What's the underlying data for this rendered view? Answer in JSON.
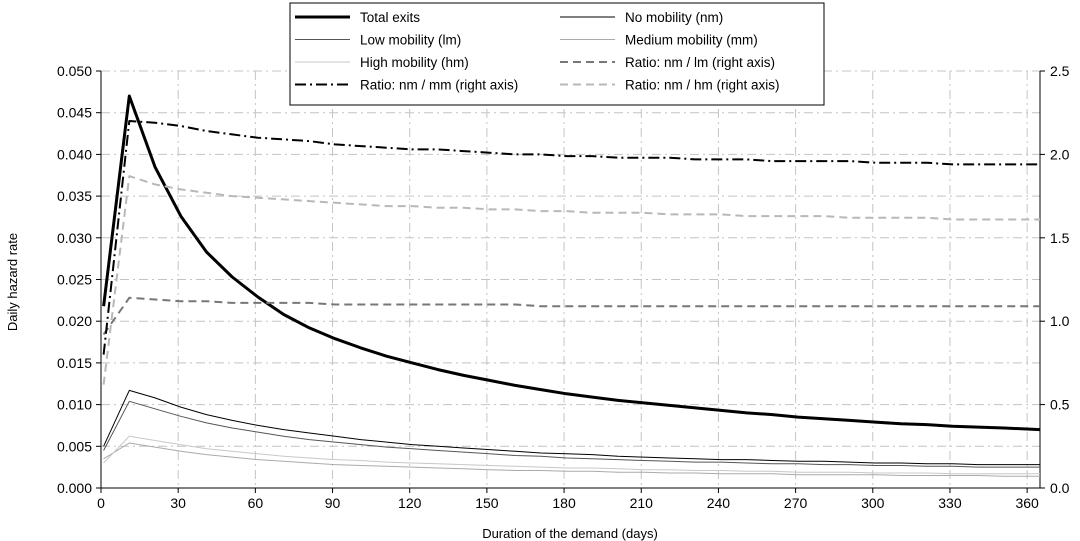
{
  "chart_data": {
    "type": "line",
    "title": "",
    "xlabel": "Duration of the demand (days)",
    "ylabel": "Daily hazard rate",
    "y2label": "",
    "xlim": [
      0,
      365
    ],
    "ylim": [
      0,
      0.05
    ],
    "y2lim": [
      0,
      2.5
    ],
    "x_ticks": [
      0,
      30,
      60,
      90,
      120,
      150,
      180,
      210,
      240,
      270,
      300,
      330,
      360
    ],
    "y_ticks": [
      "0.000",
      "0.005",
      "0.010",
      "0.015",
      "0.020",
      "0.025",
      "0.030",
      "0.035",
      "0.040",
      "0.045",
      "0.050"
    ],
    "y2_ticks": [
      "0.0",
      "0.5",
      "1.0",
      "1.5",
      "2.0",
      "2.5"
    ],
    "grid": true,
    "legend_position": "top-center",
    "x": [
      1,
      11,
      21,
      31,
      41,
      51,
      61,
      71,
      81,
      91,
      101,
      111,
      121,
      131,
      141,
      151,
      161,
      171,
      181,
      191,
      201,
      211,
      221,
      231,
      241,
      251,
      261,
      271,
      281,
      291,
      301,
      311,
      321,
      331,
      341,
      351,
      365
    ],
    "series": [
      {
        "name": "Total exits",
        "axis": "left",
        "color": "#000000",
        "width": 3,
        "dash": "",
        "values": [
          0.0218,
          0.047,
          0.0385,
          0.0326,
          0.0283,
          0.0253,
          0.0229,
          0.0208,
          0.0192,
          0.0179,
          0.0168,
          0.0158,
          0.015,
          0.0142,
          0.0135,
          0.0129,
          0.0123,
          0.0118,
          0.0113,
          0.0109,
          0.0105,
          0.0102,
          0.0099,
          0.0096,
          0.0093,
          0.009,
          0.0088,
          0.0085,
          0.0083,
          0.0081,
          0.0079,
          0.0077,
          0.0076,
          0.0074,
          0.0073,
          0.0072,
          0.007
        ]
      },
      {
        "name": "No mobility (nm)",
        "axis": "left",
        "color": "#000000",
        "width": 1,
        "dash": "",
        "values": [
          0.005,
          0.0117,
          0.0108,
          0.0097,
          0.0088,
          0.0081,
          0.0075,
          0.007,
          0.0066,
          0.0062,
          0.0058,
          0.0055,
          0.0052,
          0.005,
          0.0048,
          0.0046,
          0.0044,
          0.0042,
          0.0041,
          0.004,
          0.0038,
          0.0037,
          0.0036,
          0.0035,
          0.0034,
          0.0034,
          0.0033,
          0.0032,
          0.0032,
          0.0031,
          0.003,
          0.003,
          0.0029,
          0.0029,
          0.0028,
          0.0028,
          0.0028
        ]
      },
      {
        "name": "Low mobility (lm)",
        "axis": "left",
        "color": "#555555",
        "width": 1,
        "dash": "",
        "values": [
          0.0045,
          0.0104,
          0.0095,
          0.0086,
          0.0078,
          0.0072,
          0.0067,
          0.0062,
          0.0058,
          0.0055,
          0.0052,
          0.0049,
          0.0047,
          0.0045,
          0.0043,
          0.0041,
          0.0039,
          0.0038,
          0.0036,
          0.0035,
          0.0034,
          0.0033,
          0.0032,
          0.0031,
          0.0031,
          0.003,
          0.0029,
          0.0029,
          0.0028,
          0.0028,
          0.0027,
          0.0027,
          0.0026,
          0.0026,
          0.0025,
          0.0025,
          0.0025
        ]
      },
      {
        "name": "Medium mobility (mm)",
        "axis": "left",
        "color": "#aaaaaa",
        "width": 1,
        "dash": "",
        "values": [
          0.0035,
          0.0054,
          0.0049,
          0.0044,
          0.004,
          0.0037,
          0.0034,
          0.0032,
          0.003,
          0.0028,
          0.0027,
          0.0026,
          0.0025,
          0.0024,
          0.0023,
          0.0022,
          0.0021,
          0.0021,
          0.002,
          0.002,
          0.0019,
          0.0019,
          0.0018,
          0.0018,
          0.0017,
          0.0017,
          0.0017,
          0.0016,
          0.0016,
          0.0016,
          0.0016,
          0.0015,
          0.0015,
          0.0015,
          0.0015,
          0.0014,
          0.0014
        ]
      },
      {
        "name": "High mobility (hm)",
        "axis": "left",
        "color": "#c8c8c8",
        "width": 1,
        "dash": "",
        "values": [
          0.003,
          0.0062,
          0.0057,
          0.0052,
          0.0047,
          0.0044,
          0.0041,
          0.0038,
          0.0036,
          0.0034,
          0.0033,
          0.0031,
          0.003,
          0.0029,
          0.0028,
          0.0027,
          0.0026,
          0.0025,
          0.0024,
          0.0024,
          0.0023,
          0.0022,
          0.0022,
          0.0021,
          0.0021,
          0.002,
          0.002,
          0.0019,
          0.0019,
          0.0019,
          0.0018,
          0.0018,
          0.0018,
          0.0017,
          0.0017,
          0.0017,
          0.0017
        ]
      },
      {
        "name": "Ratio: nm / lm (right axis)",
        "axis": "right",
        "color": "#777777",
        "width": 2,
        "dash": "8,5",
        "values": [
          0.92,
          1.14,
          1.13,
          1.12,
          1.12,
          1.11,
          1.11,
          1.11,
          1.11,
          1.1,
          1.1,
          1.1,
          1.1,
          1.1,
          1.1,
          1.1,
          1.1,
          1.09,
          1.09,
          1.09,
          1.09,
          1.09,
          1.09,
          1.09,
          1.09,
          1.09,
          1.09,
          1.09,
          1.09,
          1.09,
          1.09,
          1.09,
          1.09,
          1.09,
          1.09,
          1.09,
          1.09
        ]
      },
      {
        "name": "Ratio: nm / mm (right axis)",
        "axis": "right",
        "color": "#000000",
        "width": 2,
        "dash": "11,4,2,4",
        "values": [
          0.8,
          2.2,
          2.19,
          2.17,
          2.14,
          2.12,
          2.1,
          2.09,
          2.08,
          2.06,
          2.05,
          2.04,
          2.03,
          2.03,
          2.02,
          2.01,
          2.0,
          2.0,
          1.99,
          1.99,
          1.98,
          1.98,
          1.98,
          1.97,
          1.97,
          1.97,
          1.96,
          1.96,
          1.96,
          1.96,
          1.95,
          1.95,
          1.95,
          1.94,
          1.94,
          1.94,
          1.94
        ]
      },
      {
        "name": "Ratio: nm / hm (right axis)",
        "axis": "right",
        "color": "#b8b8b8",
        "width": 2,
        "dash": "8,5",
        "values": [
          0.62,
          1.87,
          1.82,
          1.79,
          1.77,
          1.75,
          1.74,
          1.73,
          1.72,
          1.71,
          1.7,
          1.69,
          1.69,
          1.68,
          1.68,
          1.67,
          1.67,
          1.66,
          1.66,
          1.65,
          1.65,
          1.65,
          1.64,
          1.64,
          1.64,
          1.63,
          1.63,
          1.63,
          1.63,
          1.62,
          1.62,
          1.62,
          1.62,
          1.61,
          1.61,
          1.61,
          1.61
        ]
      }
    ]
  }
}
